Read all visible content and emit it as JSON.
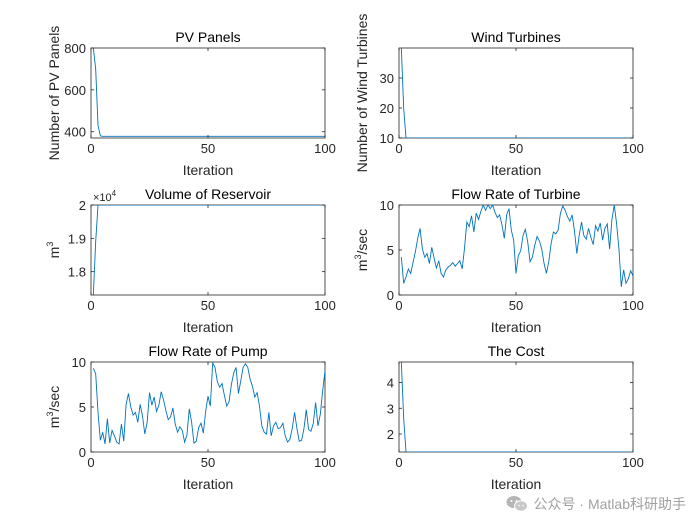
{
  "chart_data": [
    {
      "type": "line",
      "title": "PV Panels",
      "xlabel": "Iteration",
      "ylabel": "Number of PV Panels",
      "xlim": [
        0,
        100
      ],
      "ylim": [
        370,
        800
      ],
      "xticks": [
        0,
        50,
        100
      ],
      "yticks": [
        400,
        600,
        800
      ],
      "ytick_labels": [
        "400",
        "600",
        "800"
      ],
      "exponent_label": "",
      "x": [
        1,
        2,
        3,
        4,
        5,
        10,
        20,
        30,
        40,
        50,
        60,
        70,
        80,
        90,
        100
      ],
      "y": [
        800,
        700,
        430,
        380,
        378,
        378,
        378,
        378,
        378,
        378,
        378,
        378,
        378,
        378,
        378
      ],
      "color": "#0072BD"
    },
    {
      "type": "line",
      "title": "Wind Turbines",
      "xlabel": "Iteration",
      "ylabel": "Number of Wind Turbines",
      "xlim": [
        0,
        100
      ],
      "ylim": [
        10,
        40
      ],
      "xticks": [
        0,
        50,
        100
      ],
      "yticks": [
        10,
        20,
        30
      ],
      "ytick_labels": [
        "10",
        "20",
        "30"
      ],
      "exponent_label": "",
      "x": [
        1,
        2,
        3,
        10,
        20,
        30,
        40,
        50,
        60,
        70,
        80,
        90,
        100
      ],
      "y": [
        40,
        20,
        10,
        10,
        10,
        10,
        10,
        10,
        10,
        10,
        10,
        10,
        10
      ],
      "color": "#0072BD"
    },
    {
      "type": "line",
      "title": "Volume of Reservoir",
      "xlabel": "Iteration",
      "ylabel": "m3",
      "xlim": [
        0,
        100
      ],
      "ylim": [
        17300,
        20000
      ],
      "xticks": [
        0,
        50,
        100
      ],
      "yticks": [
        18000,
        19000,
        20000
      ],
      "ytick_labels": [
        "1.8",
        "1.9",
        "2"
      ],
      "exponent_label": "×10",
      "exponent_power": "4",
      "x": [
        1,
        2,
        3,
        10,
        20,
        30,
        40,
        50,
        60,
        70,
        80,
        90,
        100
      ],
      "y": [
        17300,
        18900,
        20000,
        20000,
        20000,
        20000,
        20000,
        20000,
        20000,
        20000,
        20000,
        20000,
        20000
      ],
      "color": "#0072BD"
    },
    {
      "type": "line",
      "title": "Flow Rate of Turbine",
      "xlabel": "Iteration",
      "ylabel": "m3/sec",
      "xlim": [
        0,
        100
      ],
      "ylim": [
        0,
        10
      ],
      "xticks": [
        0,
        50,
        100
      ],
      "yticks": [
        0,
        5,
        10
      ],
      "ytick_labels": [
        "0",
        "5",
        "10"
      ],
      "exponent_label": "",
      "x": [
        1,
        2,
        3,
        4,
        5,
        6,
        7,
        8,
        9,
        10,
        11,
        12,
        13,
        14,
        15,
        16,
        17,
        18,
        19,
        20,
        21,
        22,
        23,
        24,
        25,
        26,
        27,
        28,
        29,
        30,
        31,
        32,
        33,
        34,
        35,
        36,
        37,
        38,
        39,
        40,
        41,
        42,
        43,
        44,
        45,
        46,
        47,
        48,
        49,
        50,
        51,
        52,
        53,
        54,
        55,
        56,
        57,
        58,
        59,
        60,
        61,
        62,
        63,
        64,
        65,
        66,
        67,
        68,
        69,
        70,
        71,
        72,
        73,
        74,
        75,
        76,
        77,
        78,
        79,
        80,
        81,
        82,
        83,
        84,
        85,
        86,
        87,
        88,
        89,
        90,
        91,
        92,
        93,
        94,
        95,
        96,
        97,
        98,
        99,
        100
      ],
      "y": [
        4.2,
        1.3,
        2.0,
        2.9,
        2.4,
        3.6,
        4.8,
        6.3,
        7.4,
        5.1,
        4.2,
        4.6,
        3.5,
        5.3,
        4.1,
        3.0,
        3.8,
        2.4,
        2.0,
        2.8,
        3.1,
        3.3,
        3.6,
        3.2,
        3.5,
        3.8,
        2.9,
        5.2,
        8.1,
        7.6,
        8.8,
        7.0,
        9.1,
        8.4,
        9.3,
        10.0,
        9.4,
        10.0,
        9.6,
        10.0,
        9.2,
        8.6,
        8.9,
        7.8,
        6.3,
        8.9,
        9.6,
        7.2,
        6.1,
        2.4,
        4.4,
        4.9,
        6.6,
        7.3,
        5.9,
        3.7,
        4.2,
        5.5,
        6.5,
        6.0,
        5.1,
        3.5,
        2.4,
        3.7,
        5.7,
        7.0,
        6.8,
        7.2,
        9.1,
        9.9,
        9.4,
        8.7,
        8.2,
        8.9,
        7.1,
        4.6,
        6.6,
        8.1,
        6.6,
        6.2,
        7.4,
        6.4,
        5.6,
        7.7,
        7.1,
        8.0,
        6.1,
        7.4,
        7.9,
        5.1,
        8.4,
        10.0,
        7.9,
        5.1,
        0.9,
        2.8,
        1.3,
        1.8,
        2.7,
        2.1
      ],
      "color": "#0072BD"
    },
    {
      "type": "line",
      "title": "Flow Rate of Pump",
      "xlabel": "Iteration",
      "ylabel": "m3/sec",
      "xlim": [
        0,
        100
      ],
      "ylim": [
        0,
        10
      ],
      "xticks": [
        0,
        50,
        100
      ],
      "yticks": [
        0,
        5,
        10
      ],
      "ytick_labels": [
        "0",
        "5",
        "10"
      ],
      "exponent_label": "",
      "x": [
        1,
        2,
        3,
        4,
        5,
        6,
        7,
        8,
        9,
        10,
        11,
        12,
        13,
        14,
        15,
        16,
        17,
        18,
        19,
        20,
        21,
        22,
        23,
        24,
        25,
        26,
        27,
        28,
        29,
        30,
        31,
        32,
        33,
        34,
        35,
        36,
        37,
        38,
        39,
        40,
        41,
        42,
        43,
        44,
        45,
        46,
        47,
        48,
        49,
        50,
        51,
        52,
        53,
        54,
        55,
        56,
        57,
        58,
        59,
        60,
        61,
        62,
        63,
        64,
        65,
        66,
        67,
        68,
        69,
        70,
        71,
        72,
        73,
        74,
        75,
        76,
        77,
        78,
        79,
        80,
        81,
        82,
        83,
        84,
        85,
        86,
        87,
        88,
        89,
        90,
        91,
        92,
        93,
        94,
        95,
        96,
        97,
        98,
        99,
        100
      ],
      "y": [
        9.3,
        8.7,
        4.4,
        1.3,
        2.2,
        0.9,
        3.7,
        1.0,
        2.4,
        1.8,
        1.1,
        0.9,
        3.1,
        1.2,
        5.3,
        6.5,
        5.0,
        4.1,
        4.4,
        3.3,
        5.3,
        4.0,
        2.0,
        3.3,
        6.6,
        5.2,
        6.1,
        4.5,
        5.2,
        6.7,
        5.8,
        4.6,
        3.6,
        3.9,
        4.9,
        3.1,
        2.2,
        2.8,
        2.4,
        1.1,
        1.9,
        4.8,
        3.3,
        1.0,
        1.2,
        2.7,
        3.2,
        2.1,
        4.5,
        6.2,
        5.1,
        9.9,
        9.4,
        7.8,
        7.2,
        7.6,
        6.3,
        5.1,
        5.6,
        7.5,
        8.8,
        9.4,
        6.5,
        7.9,
        9.4,
        9.8,
        9.4,
        8.1,
        7.3,
        6.1,
        6.6,
        5.1,
        2.9,
        2.2,
        2.0,
        4.4,
        1.8,
        2.9,
        3.3,
        2.6,
        2.7,
        3.2,
        1.8,
        1.1,
        1.4,
        2.6,
        4.4,
        2.6,
        1.2,
        1.3,
        2.6,
        4.7,
        2.5,
        2.3,
        3.2,
        5.5,
        2.9,
        4.2,
        6.8,
        9.0
      ],
      "color": "#0072BD"
    },
    {
      "type": "line",
      "title": "The Cost",
      "xlabel": "Iteration",
      "ylabel": "",
      "xlim": [
        0,
        100
      ],
      "ylim": [
        1.3,
        4.8
      ],
      "xticks": [
        0,
        50,
        100
      ],
      "yticks": [
        2,
        3,
        4
      ],
      "ytick_labels": [
        "2",
        "3",
        "4"
      ],
      "exponent_label": "",
      "x": [
        1,
        2,
        3,
        10,
        20,
        30,
        40,
        50,
        60,
        70,
        80,
        90,
        100
      ],
      "y": [
        4.8,
        2.6,
        1.3,
        1.3,
        1.3,
        1.3,
        1.3,
        1.3,
        1.3,
        1.3,
        1.3,
        1.3,
        1.3
      ],
      "color": "#0072BD"
    }
  ],
  "watermark": {
    "text": "公众号 · Matlab科研助手",
    "icon": "wechat-icon"
  }
}
